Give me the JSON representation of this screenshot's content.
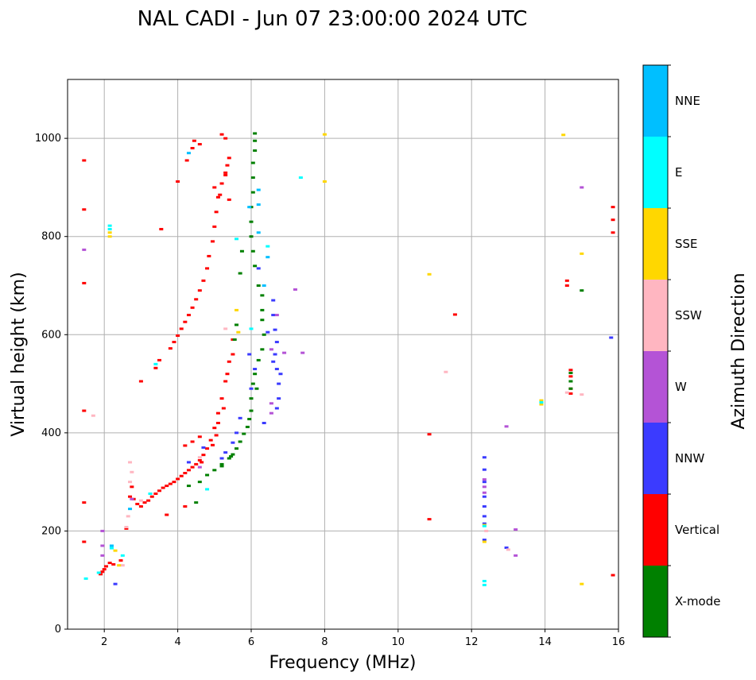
{
  "chart_data": {
    "type": "scatter",
    "title": "NAL CADI - Jun 07 23:00:00 2024 UTC",
    "xlabel": "Frequency (MHz)",
    "ylabel": "Virtual height (km)",
    "xlim": [
      1,
      16
    ],
    "ylim": [
      0,
      1120
    ],
    "xticks": [
      2,
      4,
      6,
      8,
      10,
      12,
      14,
      16
    ],
    "yticks": [
      0,
      200,
      400,
      600,
      800,
      1000
    ],
    "grid": true,
    "colorbar": {
      "label": "Azimuth Direction",
      "categories": [
        {
          "name": "X-mode",
          "color": "#008000"
        },
        {
          "name": "Vertical",
          "color": "#ff0000"
        },
        {
          "name": "NNW",
          "color": "#3b3bff"
        },
        {
          "name": "W",
          "color": "#b453d6"
        },
        {
          "name": "SSW",
          "color": "#ffb6c1"
        },
        {
          "name": "SSE",
          "color": "#ffd700"
        },
        {
          "name": "E",
          "color": "#00ffff"
        },
        {
          "name": "NNE",
          "color": "#00bfff"
        }
      ]
    },
    "series": [
      {
        "name": "Vertical",
        "points": [
          [
            1.45,
            955
          ],
          [
            1.45,
            855
          ],
          [
            1.45,
            705
          ],
          [
            1.45,
            445
          ],
          [
            1.45,
            258
          ],
          [
            1.45,
            178
          ],
          [
            1.9,
            112
          ],
          [
            1.95,
            117
          ],
          [
            2.0,
            122
          ],
          [
            2.05,
            128
          ],
          [
            2.15,
            135
          ],
          [
            2.25,
            132
          ],
          [
            2.45,
            140
          ],
          [
            2.6,
            205
          ],
          [
            2.7,
            270
          ],
          [
            2.75,
            290
          ],
          [
            2.8,
            265
          ],
          [
            2.9,
            255
          ],
          [
            3.0,
            250
          ],
          [
            3.1,
            258
          ],
          [
            3.2,
            262
          ],
          [
            3.3,
            270
          ],
          [
            3.4,
            276
          ],
          [
            3.5,
            282
          ],
          [
            3.6,
            288
          ],
          [
            3.7,
            292
          ],
          [
            3.8,
            296
          ],
          [
            3.9,
            300
          ],
          [
            4.0,
            306
          ],
          [
            4.1,
            312
          ],
          [
            4.2,
            318
          ],
          [
            4.3,
            324
          ],
          [
            4.4,
            330
          ],
          [
            4.5,
            336
          ],
          [
            4.6,
            344
          ],
          [
            4.7,
            355
          ],
          [
            4.8,
            368
          ],
          [
            4.9,
            385
          ],
          [
            5.0,
            410
          ],
          [
            5.1,
            440
          ],
          [
            5.2,
            470
          ],
          [
            5.3,
            505
          ],
          [
            5.4,
            545
          ],
          [
            5.5,
            590
          ],
          [
            4.2,
            374
          ],
          [
            4.4,
            382
          ],
          [
            4.6,
            392
          ],
          [
            4.65,
            340
          ],
          [
            3.0,
            505
          ],
          [
            3.4,
            532
          ],
          [
            3.5,
            548
          ],
          [
            3.8,
            572
          ],
          [
            3.9,
            585
          ],
          [
            4.0,
            598
          ],
          [
            4.1,
            612
          ],
          [
            4.2,
            626
          ],
          [
            4.3,
            640
          ],
          [
            4.4,
            655
          ],
          [
            4.5,
            672
          ],
          [
            4.6,
            690
          ],
          [
            4.7,
            710
          ],
          [
            4.8,
            735
          ],
          [
            4.85,
            760
          ],
          [
            4.95,
            790
          ],
          [
            5.0,
            820
          ],
          [
            5.05,
            850
          ],
          [
            5.1,
            880
          ],
          [
            5.2,
            908
          ],
          [
            5.3,
            930
          ],
          [
            5.35,
            945
          ],
          [
            5.4,
            960
          ],
          [
            5.3,
            1000
          ],
          [
            5.2,
            1008
          ],
          [
            5.0,
            900
          ],
          [
            5.15,
            885
          ],
          [
            4.0,
            912
          ],
          [
            4.25,
            955
          ],
          [
            4.4,
            980
          ],
          [
            4.45,
            995
          ],
          [
            4.6,
            988
          ],
          [
            3.55,
            815
          ],
          [
            5.3,
            925
          ],
          [
            5.4,
            875
          ],
          [
            5.5,
            560
          ],
          [
            5.35,
            520
          ],
          [
            5.25,
            450
          ],
          [
            5.1,
            420
          ],
          [
            5.05,
            395
          ],
          [
            4.95,
            375
          ],
          [
            3.7,
            233
          ],
          [
            4.2,
            250
          ],
          [
            10.85,
            397
          ],
          [
            10.85,
            224
          ],
          [
            11.55,
            641
          ],
          [
            15.85,
            860
          ],
          [
            15.85,
            834
          ],
          [
            15.85,
            808
          ],
          [
            15.85,
            110
          ],
          [
            14.6,
            710
          ],
          [
            14.6,
            700
          ],
          [
            14.7,
            528
          ],
          [
            14.7,
            515
          ],
          [
            14.7,
            490
          ],
          [
            14.7,
            480
          ]
        ]
      },
      {
        "name": "X-mode",
        "points": [
          [
            4.3,
            292
          ],
          [
            4.6,
            300
          ],
          [
            4.8,
            314
          ],
          [
            5.0,
            324
          ],
          [
            5.2,
            336
          ],
          [
            5.4,
            348
          ],
          [
            5.5,
            356
          ],
          [
            5.6,
            368
          ],
          [
            5.7,
            382
          ],
          [
            5.8,
            398
          ],
          [
            5.9,
            412
          ],
          [
            5.95,
            428
          ],
          [
            6.0,
            445
          ],
          [
            6.0,
            470
          ],
          [
            6.05,
            500
          ],
          [
            6.1,
            520
          ],
          [
            6.15,
            490
          ],
          [
            6.2,
            548
          ],
          [
            6.3,
            570
          ],
          [
            6.35,
            600
          ],
          [
            6.3,
            630
          ],
          [
            6.3,
            650
          ],
          [
            6.3,
            680
          ],
          [
            6.2,
            700
          ],
          [
            6.1,
            740
          ],
          [
            6.05,
            770
          ],
          [
            6.0,
            800
          ],
          [
            6.0,
            830
          ],
          [
            6.0,
            860
          ],
          [
            6.05,
            890
          ],
          [
            6.05,
            920
          ],
          [
            6.05,
            950
          ],
          [
            6.1,
            975
          ],
          [
            6.1,
            995
          ],
          [
            6.1,
            1010
          ],
          [
            5.7,
            725
          ],
          [
            5.75,
            770
          ],
          [
            5.55,
            590
          ],
          [
            5.6,
            620
          ],
          [
            4.5,
            258
          ],
          [
            14.7,
            522
          ],
          [
            14.7,
            505
          ],
          [
            14.7,
            490
          ],
          [
            15.0,
            690
          ],
          [
            5.2,
            332
          ],
          [
            5.45,
            352
          ]
        ]
      },
      {
        "name": "NNW",
        "points": [
          [
            2.3,
            92
          ],
          [
            12.35,
            350
          ],
          [
            12.35,
            325
          ],
          [
            12.35,
            300
          ],
          [
            12.35,
            270
          ],
          [
            12.35,
            250
          ],
          [
            12.35,
            230
          ],
          [
            12.35,
            215
          ],
          [
            12.35,
            182
          ],
          [
            12.95,
            166
          ],
          [
            6.6,
            670
          ],
          [
            6.6,
            640
          ],
          [
            6.65,
            610
          ],
          [
            6.7,
            585
          ],
          [
            6.65,
            560
          ],
          [
            6.7,
            530
          ],
          [
            6.75,
            500
          ],
          [
            6.75,
            470
          ],
          [
            6.7,
            450
          ],
          [
            6.35,
            420
          ],
          [
            6.1,
            530
          ],
          [
            6.0,
            490
          ],
          [
            5.95,
            560
          ],
          [
            5.7,
            430
          ],
          [
            5.6,
            400
          ],
          [
            5.5,
            380
          ],
          [
            5.3,
            360
          ],
          [
            5.2,
            348
          ],
          [
            6.6,
            545
          ],
          [
            6.8,
            520
          ],
          [
            6.2,
            735
          ],
          [
            6.45,
            605
          ],
          [
            15.8,
            594
          ],
          [
            4.7,
            370
          ],
          [
            4.3,
            340
          ]
        ]
      },
      {
        "name": "W",
        "points": [
          [
            1.95,
            200
          ],
          [
            1.95,
            170
          ],
          [
            1.95,
            150
          ],
          [
            12.35,
            305
          ],
          [
            12.35,
            290
          ],
          [
            12.35,
            278
          ],
          [
            13.2,
            203
          ],
          [
            13.2,
            150
          ],
          [
            12.95,
            413
          ],
          [
            15.0,
            900
          ],
          [
            6.7,
            640
          ],
          [
            6.9,
            563
          ],
          [
            7.2,
            692
          ],
          [
            7.4,
            563
          ],
          [
            6.55,
            570
          ],
          [
            6.55,
            460
          ],
          [
            6.55,
            440
          ],
          [
            2.75,
            265
          ],
          [
            4.6,
            330
          ],
          [
            1.45,
            773
          ]
        ]
      },
      {
        "name": "SSW",
        "points": [
          [
            2.7,
            340
          ],
          [
            2.75,
            320
          ],
          [
            2.7,
            300
          ],
          [
            2.65,
            230
          ],
          [
            2.6,
            208
          ],
          [
            2.5,
            130
          ],
          [
            11.3,
            524
          ],
          [
            15.0,
            478
          ],
          [
            14.6,
            482
          ],
          [
            13.0,
            162
          ],
          [
            3.0,
            262
          ],
          [
            4.6,
            350
          ],
          [
            1.7,
            435
          ],
          [
            12.4,
            200
          ],
          [
            5.3,
            612
          ]
        ]
      },
      {
        "name": "SSE",
        "points": [
          [
            2.15,
            808
          ],
          [
            2.15,
            800
          ],
          [
            8.0,
            1008
          ],
          [
            8.0,
            912
          ],
          [
            10.85,
            723
          ],
          [
            14.5,
            1007
          ],
          [
            15.0,
            765
          ],
          [
            15.0,
            92
          ],
          [
            12.35,
            178
          ],
          [
            13.9,
            466
          ],
          [
            13.9,
            458
          ],
          [
            2.4,
            130
          ],
          [
            2.3,
            160
          ],
          [
            5.6,
            650
          ],
          [
            5.65,
            605
          ],
          [
            12.35,
            212
          ]
        ]
      },
      {
        "name": "E",
        "points": [
          [
            2.15,
            822
          ],
          [
            2.15,
            815
          ],
          [
            7.35,
            920
          ],
          [
            12.35,
            98
          ],
          [
            12.35,
            90
          ],
          [
            1.5,
            103
          ],
          [
            1.85,
            115
          ],
          [
            2.2,
            165
          ],
          [
            2.5,
            150
          ],
          [
            3.25,
            276
          ],
          [
            3.4,
            540
          ],
          [
            4.8,
            285
          ],
          [
            5.6,
            795
          ],
          [
            6.0,
            612
          ],
          [
            6.45,
            780
          ],
          [
            12.35,
            210
          ],
          [
            13.9,
            462
          ]
        ]
      },
      {
        "name": "NNE",
        "points": [
          [
            6.2,
            895
          ],
          [
            6.2,
            865
          ],
          [
            6.2,
            808
          ],
          [
            6.45,
            758
          ],
          [
            4.3,
            970
          ],
          [
            2.7,
            245
          ],
          [
            2.2,
            170
          ],
          [
            5.95,
            860
          ],
          [
            6.35,
            700
          ]
        ]
      }
    ]
  }
}
